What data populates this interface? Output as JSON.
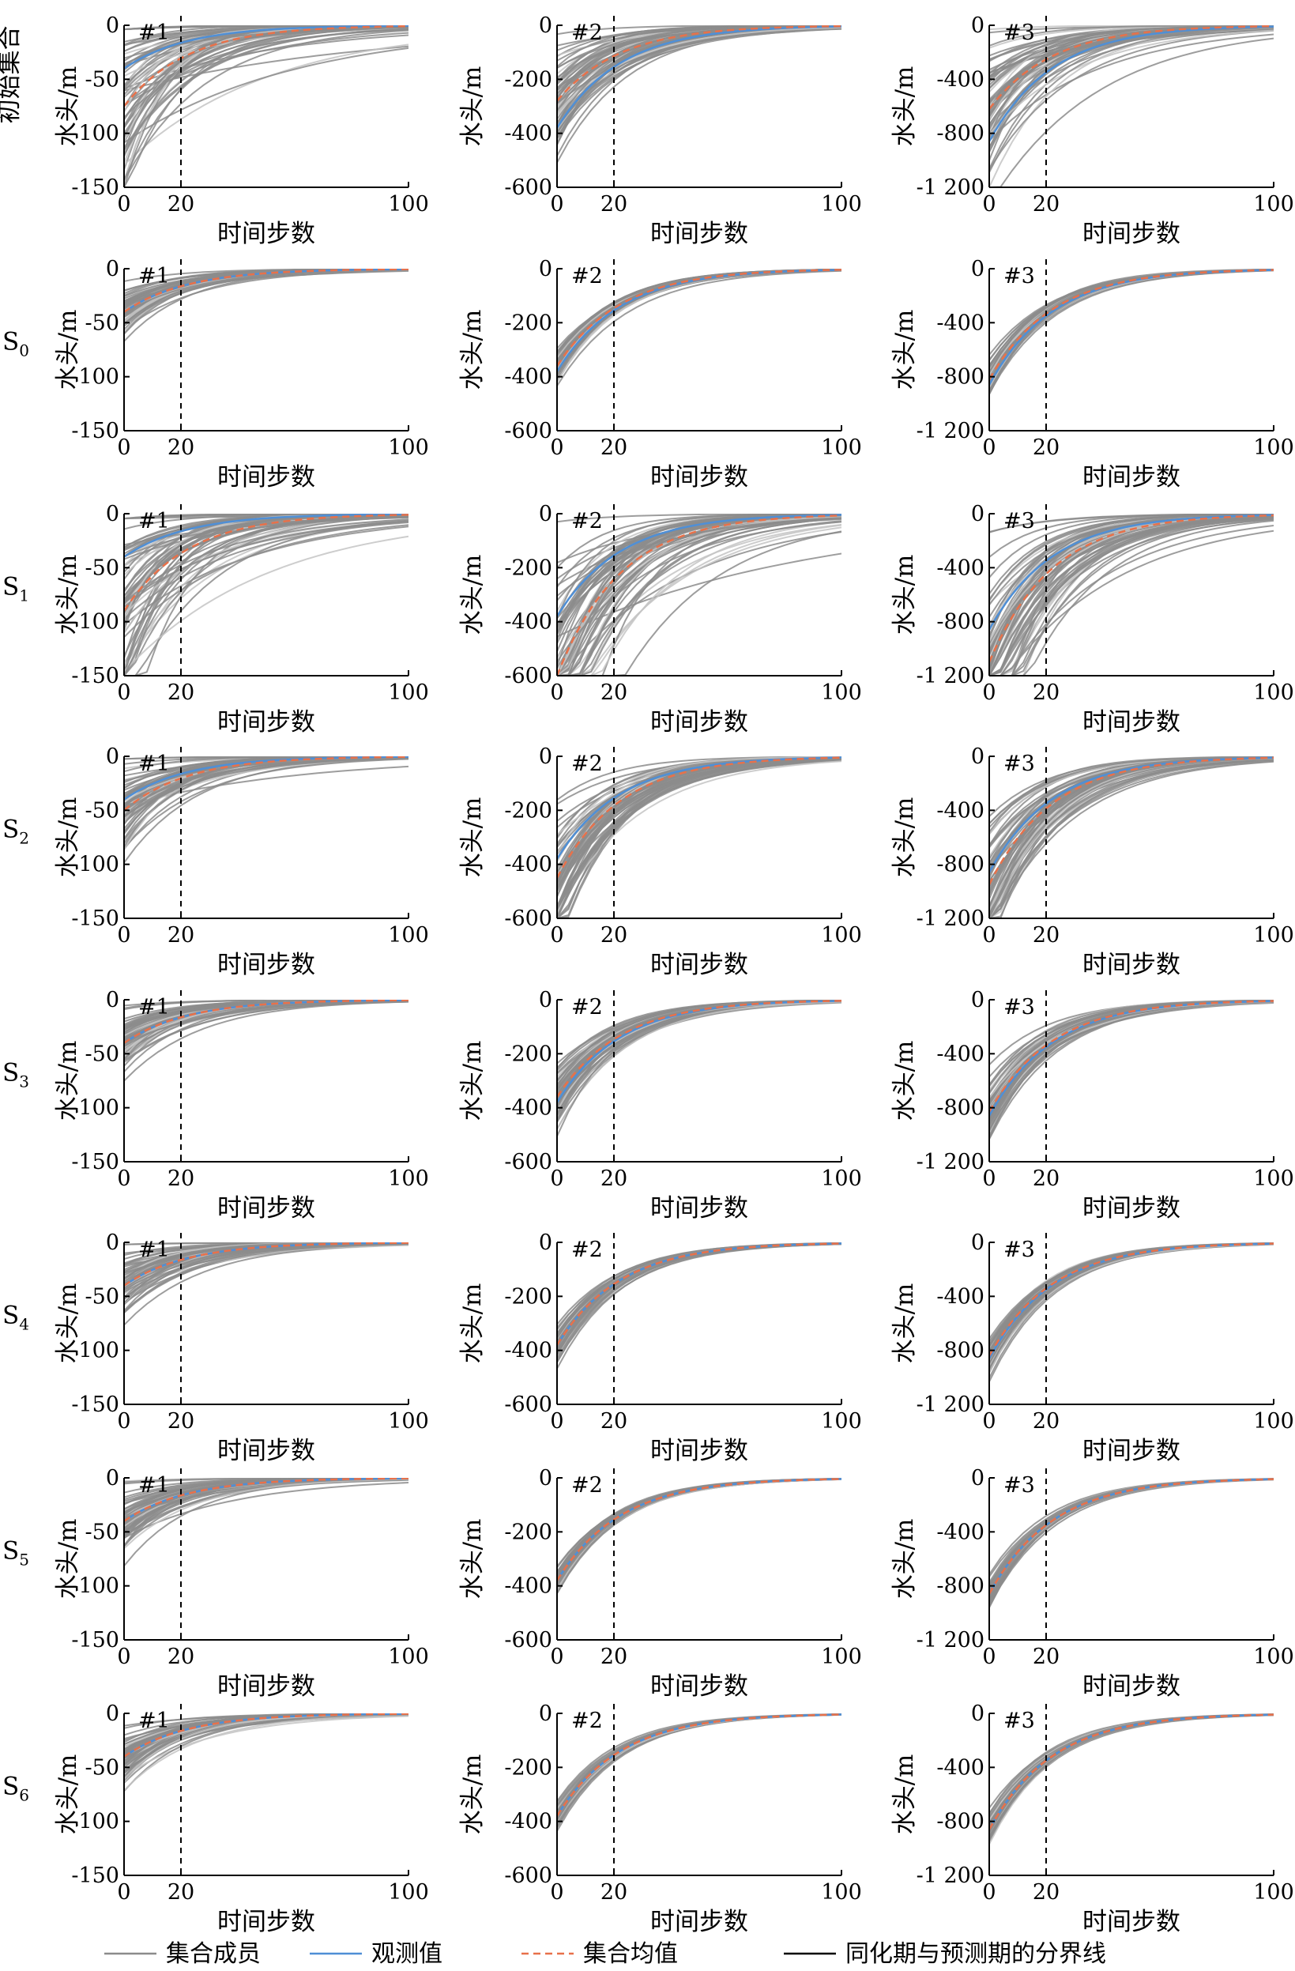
{
  "chart_data": {
    "type": "line",
    "xlabel": "时间步数",
    "ylabel": "水头/m",
    "xticks": [
      0,
      20,
      100
    ],
    "xlim": [
      0,
      100
    ],
    "boundary_x": 20,
    "row_labels": [
      {
        "text": "初始集合",
        "sub": ""
      },
      {
        "text": "S",
        "sub": "0"
      },
      {
        "text": "S",
        "sub": "1"
      },
      {
        "text": "S",
        "sub": "2"
      },
      {
        "text": "S",
        "sub": "3"
      },
      {
        "text": "S",
        "sub": "4"
      },
      {
        "text": "S",
        "sub": "5"
      },
      {
        "text": "S",
        "sub": "6"
      }
    ],
    "wells": [
      {
        "tag": "#1",
        "ylim": [
          -150,
          0
        ],
        "yticks": [
          0,
          -50,
          -100,
          -150
        ],
        "ytick_labels": [
          "0",
          "-50",
          "-100",
          "-150"
        ],
        "observed_start": -40
      },
      {
        "tag": "#2",
        "ylim": [
          -600,
          0
        ],
        "yticks": [
          0,
          -200,
          -400,
          -600
        ],
        "ytick_labels": [
          "0",
          "-200",
          "-400",
          "-600"
        ],
        "observed_start": -380
      },
      {
        "tag": "#3",
        "ylim": [
          -1200,
          0
        ],
        "yticks": [
          0,
          -400,
          -800,
          -1200
        ],
        "ytick_labels": [
          "0",
          "-400",
          "-800",
          "-1 200"
        ],
        "observed_start": -860
      }
    ],
    "colors": {
      "ensemble": "#8c8c8c",
      "ensemble_light": "#c4c4c4",
      "observed": "#4f8fd6",
      "mean": "#e8714a",
      "boundary": "#000000"
    },
    "legend": {
      "position": "bottom",
      "entries": [
        {
          "label": "集合成员",
          "style": "ensemble"
        },
        {
          "label": "观测值",
          "style": "observed"
        },
        {
          "label": "集合均值",
          "style": "mean"
        },
        {
          "label": "同化期与预测期的分界线",
          "style": "boundary"
        }
      ]
    },
    "stages": [
      {
        "label": "初始集合",
        "mean_start": [
          -75,
          -280,
          -620
        ],
        "spread": [
          0.9,
          0.55,
          0.6
        ]
      },
      {
        "label": "S0",
        "mean_start": [
          -40,
          -360,
          -820
        ],
        "spread": [
          0.35,
          0.13,
          0.12
        ]
      },
      {
        "label": "S1",
        "mean_start": [
          -90,
          -600,
          -1100
        ],
        "spread": [
          0.9,
          0.6,
          0.6
        ]
      },
      {
        "label": "S2",
        "mean_start": [
          -50,
          -450,
          -950
        ],
        "spread": [
          0.65,
          0.35,
          0.35
        ]
      },
      {
        "label": "S3",
        "mean_start": [
          -40,
          -360,
          -830
        ],
        "spread": [
          0.55,
          0.22,
          0.2
        ]
      },
      {
        "label": "S4",
        "mean_start": [
          -40,
          -380,
          -840
        ],
        "spread": [
          0.5,
          0.12,
          0.12
        ]
      },
      {
        "label": "S5",
        "mean_start": [
          -40,
          -380,
          -860
        ],
        "spread": [
          0.5,
          0.08,
          0.08
        ]
      },
      {
        "label": "S6",
        "mean_start": [
          -40,
          -380,
          -860
        ],
        "spread": [
          0.4,
          0.08,
          0.08
        ]
      }
    ]
  }
}
